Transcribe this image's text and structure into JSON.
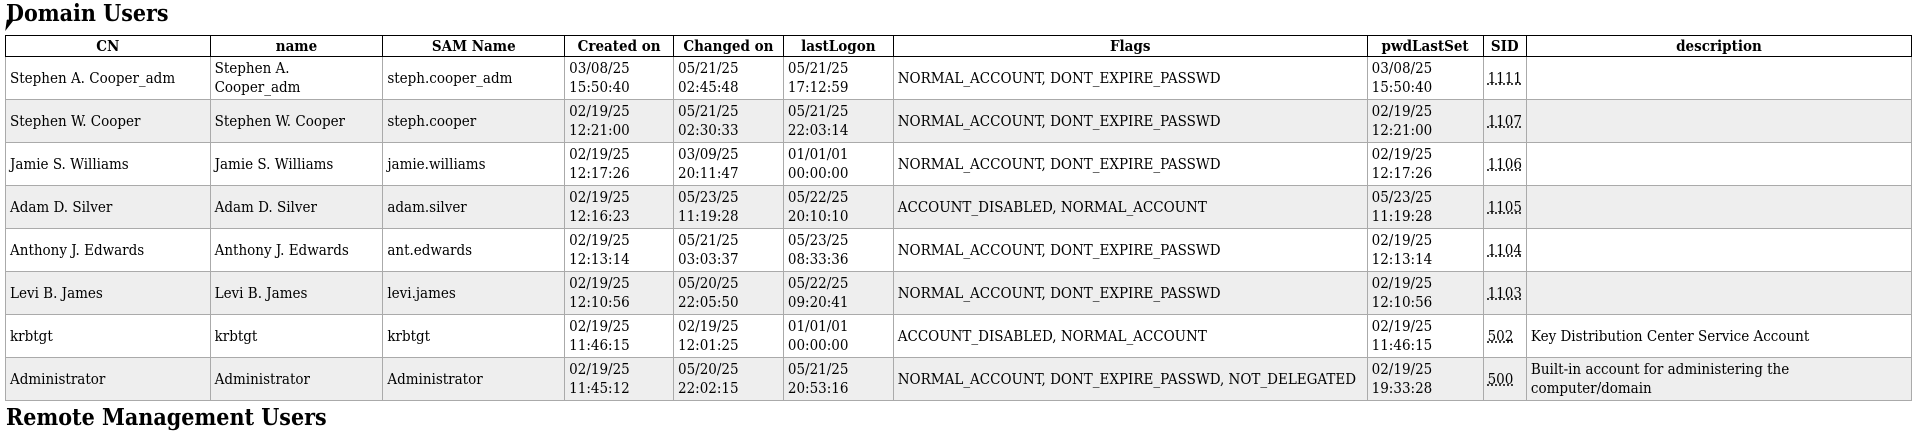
{
  "title": "Domain Users",
  "next_section_title": "Remote Management Users",
  "columns": [
    "CN",
    "name",
    "SAM Name",
    "Created on",
    "Changed on",
    "lastLogon",
    "Flags",
    "pwdLastSet",
    "SID",
    "description"
  ],
  "rows": [
    {
      "cn": "Stephen A. Cooper_adm",
      "name": "Stephen A. Cooper_adm",
      "sam": "steph.cooper_adm",
      "created": [
        "03/08/25",
        "15:50:40"
      ],
      "changed": [
        "05/21/25",
        "02:45:48"
      ],
      "lastlogon": [
        "05/21/25",
        "17:12:59"
      ],
      "flags": "NORMAL_ACCOUNT, DONT_EXPIRE_PASSWD",
      "pwdlastset": [
        "03/08/25",
        "15:50:40"
      ],
      "sid": "1111",
      "description": ""
    },
    {
      "cn": "Stephen W. Cooper",
      "name": "Stephen W. Cooper",
      "sam": "steph.cooper",
      "created": [
        "02/19/25",
        "12:21:00"
      ],
      "changed": [
        "05/21/25",
        "02:30:33"
      ],
      "lastlogon": [
        "05/21/25",
        "22:03:14"
      ],
      "flags": "NORMAL_ACCOUNT, DONT_EXPIRE_PASSWD",
      "pwdlastset": [
        "02/19/25",
        "12:21:00"
      ],
      "sid": "1107",
      "description": ""
    },
    {
      "cn": "Jamie S. Williams",
      "name": "Jamie S. Williams",
      "sam": "jamie.williams",
      "created": [
        "02/19/25",
        "12:17:26"
      ],
      "changed": [
        "03/09/25",
        "20:11:47"
      ],
      "lastlogon": [
        "01/01/01",
        "00:00:00"
      ],
      "flags": "NORMAL_ACCOUNT, DONT_EXPIRE_PASSWD",
      "pwdlastset": [
        "02/19/25",
        "12:17:26"
      ],
      "sid": "1106",
      "description": ""
    },
    {
      "cn": "Adam D. Silver",
      "name": "Adam D. Silver",
      "sam": "adam.silver",
      "created": [
        "02/19/25",
        "12:16:23"
      ],
      "changed": [
        "05/23/25",
        "11:19:28"
      ],
      "lastlogon": [
        "05/22/25",
        "20:10:10"
      ],
      "flags": "ACCOUNT_DISABLED, NORMAL_ACCOUNT",
      "pwdlastset": [
        "05/23/25",
        "11:19:28"
      ],
      "sid": "1105",
      "description": ""
    },
    {
      "cn": "Anthony J. Edwards",
      "name": "Anthony J. Edwards",
      "sam": "ant.edwards",
      "created": [
        "02/19/25",
        "12:13:14"
      ],
      "changed": [
        "05/21/25",
        "03:03:37"
      ],
      "lastlogon": [
        "05/23/25",
        "08:33:36"
      ],
      "flags": "NORMAL_ACCOUNT, DONT_EXPIRE_PASSWD",
      "pwdlastset": [
        "02/19/25",
        "12:13:14"
      ],
      "sid": "1104",
      "description": ""
    },
    {
      "cn": "Levi B. James",
      "name": "Levi B. James",
      "sam": "levi.james",
      "created": [
        "02/19/25",
        "12:10:56"
      ],
      "changed": [
        "05/20/25",
        "22:05:50"
      ],
      "lastlogon": [
        "05/22/25",
        "09:20:41"
      ],
      "flags": "NORMAL_ACCOUNT, DONT_EXPIRE_PASSWD",
      "pwdlastset": [
        "02/19/25",
        "12:10:56"
      ],
      "sid": "1103",
      "description": ""
    },
    {
      "cn": "krbtgt",
      "name": "krbtgt",
      "sam": "krbtgt",
      "created": [
        "02/19/25",
        "11:46:15"
      ],
      "changed": [
        "02/19/25",
        "12:01:25"
      ],
      "lastlogon": [
        "01/01/01",
        "00:00:00"
      ],
      "flags": "ACCOUNT_DISABLED, NORMAL_ACCOUNT",
      "pwdlastset": [
        "02/19/25",
        "11:46:15"
      ],
      "sid": "502",
      "description": "Key Distribution Center Service Account"
    },
    {
      "cn": "Administrator",
      "name": "Administrator",
      "sam": "Administrator",
      "created": [
        "02/19/25",
        "11:45:12"
      ],
      "changed": [
        "05/20/25",
        "22:02:15"
      ],
      "lastlogon": [
        "05/21/25",
        "20:53:16"
      ],
      "flags": "NORMAL_ACCOUNT, DONT_EXPIRE_PASSWD, NOT_DELEGATED",
      "pwdlastset": [
        "02/19/25",
        "19:33:28"
      ],
      "sid": "500",
      "description": "Built-in account for administering the computer/domain"
    }
  ]
}
